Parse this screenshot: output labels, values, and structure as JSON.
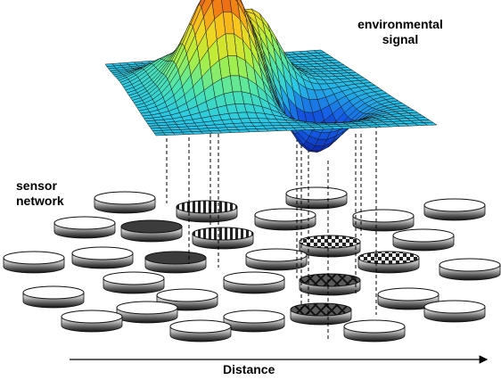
{
  "labels": {
    "environmental_signal_line1": "environmental",
    "environmental_signal_line2": "signal",
    "sensor_network_line1": "sensor",
    "sensor_network_line2": "network",
    "distance": "Distance"
  },
  "colors": {
    "surface_grid": "#1a1a1a",
    "disc_top": "#ffffff",
    "disc_side_light": "#eeeeee",
    "disc_side_dark": "#1e1e1e",
    "active_dark": "#3c3c3c"
  },
  "sensor_patterns": [
    "plain",
    "dark",
    "vstripes",
    "checker",
    "xpattern"
  ]
}
